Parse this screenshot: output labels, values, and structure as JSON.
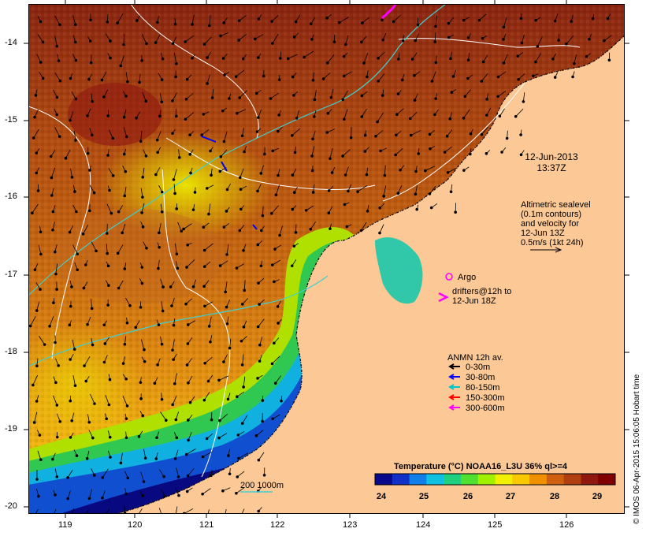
{
  "map": {
    "date": "12-Jun-2013",
    "time": "13:37Z",
    "lon_ticks": [
      "119",
      "120",
      "121",
      "122",
      "123",
      "124",
      "125",
      "126"
    ],
    "lat_ticks": [
      "-14",
      "-15",
      "-16",
      "-17",
      "-18",
      "-19",
      "-20"
    ],
    "land_color": "#fbc896"
  },
  "altimetry_note": {
    "line1": "Altimetric sealevel",
    "line2": "(0.1m contours)",
    "line3": "and velocity for",
    "line4": "12-Jun 13Z",
    "line5": "0.5m/s (1kt 24h)"
  },
  "argo": {
    "label": "Argo",
    "color": "#ff00ff"
  },
  "drifters": {
    "line1": "drifters@12h to",
    "line2": "12-Jun 18Z",
    "color": "#ff00ff"
  },
  "anmn": {
    "title": "ANMN 12h av.",
    "items": [
      {
        "label": "0-30m",
        "color": "#000000"
      },
      {
        "label": "30-80m",
        "color": "#0000ff"
      },
      {
        "label": "80-150m",
        "color": "#00c8c8"
      },
      {
        "label": "150-300m",
        "color": "#ff0000"
      },
      {
        "label": "300-600m",
        "color": "#ff00ff"
      }
    ]
  },
  "isobath": {
    "label": "200 1000m"
  },
  "colorbar": {
    "title": "Temperature (°C) NOAA16_L3U 36% ql>=4",
    "ticks": [
      "24",
      "25",
      "26",
      "27",
      "28",
      "29"
    ],
    "colors": [
      "#08088a",
      "#1030c8",
      "#1080e8",
      "#10c0e0",
      "#20d080",
      "#50e030",
      "#a0f000",
      "#f0f000",
      "#f8c800",
      "#f09000",
      "#d06010",
      "#b04010",
      "#901810",
      "#800000"
    ]
  },
  "credit": "© IMOS 06-Apr-2015 15:06:05 Hobart time"
}
